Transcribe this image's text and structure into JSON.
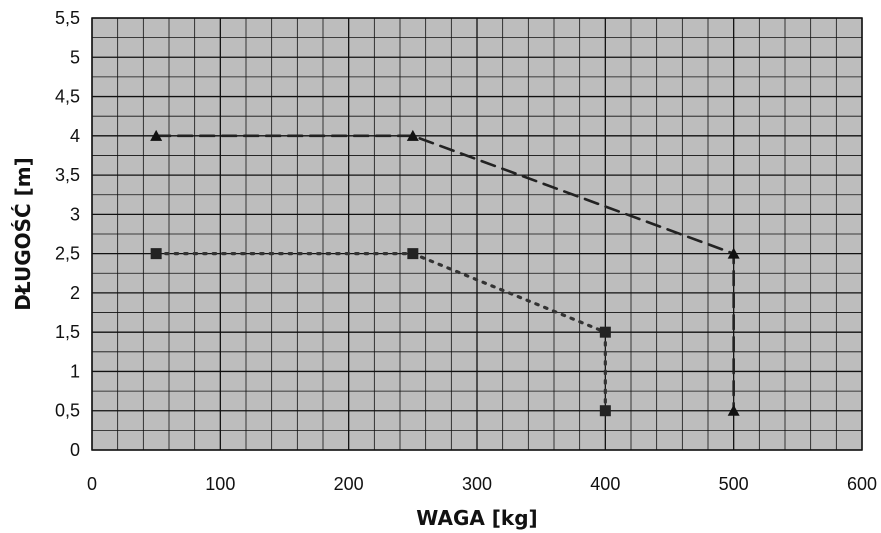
{
  "chart_data": {
    "type": "line",
    "xlabel": "WAGA [kg]",
    "ylabel": "DŁUGOŚĆ [m]",
    "xlim": [
      0,
      600
    ],
    "ylim": [
      0,
      5.5
    ],
    "x_ticks": [
      "0",
      "100",
      "200",
      "300",
      "400",
      "500",
      "600"
    ],
    "y_ticks": [
      "0",
      "0,5",
      "1",
      "1,5",
      "2",
      "2,5",
      "3",
      "3,5",
      "4",
      "4,5",
      "5",
      "5,5"
    ],
    "grid": true,
    "legend": "none",
    "series": [
      {
        "marker": "triangle",
        "line_style": "dashed",
        "color": "#222222",
        "points": [
          [
            50,
            4.0
          ],
          [
            250,
            4.0
          ],
          [
            500,
            2.5
          ],
          [
            500,
            0.5
          ]
        ]
      },
      {
        "marker": "square",
        "line_style": "dotted",
        "color": "#333333",
        "points": [
          [
            50,
            2.5
          ],
          [
            250,
            2.5
          ],
          [
            400,
            1.5
          ],
          [
            400,
            0.5
          ]
        ]
      }
    ]
  },
  "colors": {
    "plot_background": "#bdbdbd",
    "grid_line": "#111111"
  }
}
